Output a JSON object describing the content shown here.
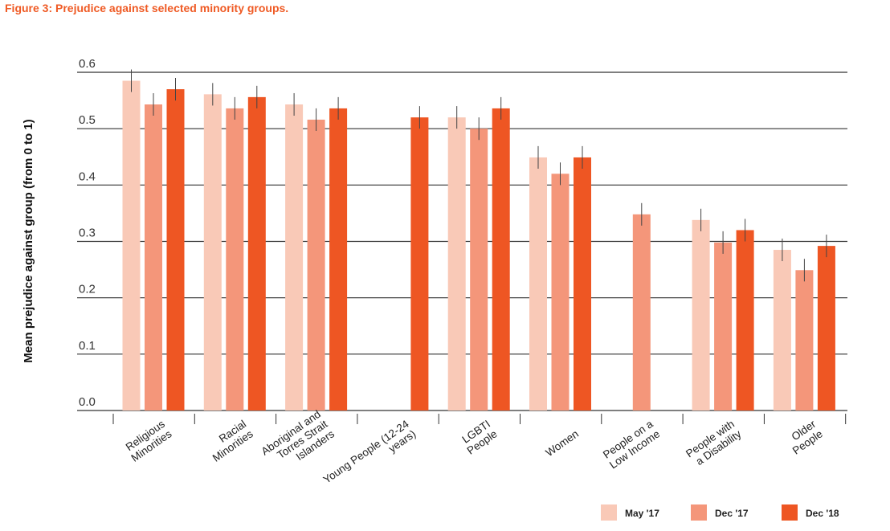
{
  "chart_data": {
    "type": "bar",
    "title": "Figure 3: Prejudice against selected minority groups.",
    "xlabel": "",
    "ylabel": "Mean prejudice against group (from 0 to 1)",
    "ylim": [
      0,
      0.6
    ],
    "yticks": [
      "0.0",
      "0.1",
      "0.2",
      "0.3",
      "0.4",
      "0.5",
      "0.6"
    ],
    "grid": true,
    "legend_position": "bottom-right",
    "categories": [
      [
        "Religious",
        "Minorities"
      ],
      [
        "Racial",
        "Minorities"
      ],
      [
        "Aboriginal and",
        "Torres Strait",
        "Islanders"
      ],
      [
        "Young People (12-24",
        "years)"
      ],
      [
        "LGBTI",
        "People"
      ],
      [
        "Women"
      ],
      [
        "People on a",
        "Low Income"
      ],
      [
        "People with",
        "a Disability"
      ],
      [
        "Older",
        "People"
      ]
    ],
    "series": [
      {
        "name": "May '17",
        "color": "#f9c9b7",
        "values": [
          0.585,
          0.561,
          0.543,
          null,
          0.52,
          0.449,
          null,
          0.338,
          0.285
        ],
        "error": 0.02
      },
      {
        "name": "Dec '17",
        "color": "#f4967a",
        "values": [
          0.543,
          0.536,
          0.516,
          null,
          0.5,
          0.42,
          0.348,
          0.298,
          0.249
        ],
        "error": 0.02
      },
      {
        "name": "Dec '18",
        "color": "#ee5623",
        "values": [
          0.57,
          0.556,
          0.536,
          0.52,
          0.536,
          0.449,
          null,
          0.32,
          0.292
        ],
        "error": 0.02
      }
    ]
  }
}
